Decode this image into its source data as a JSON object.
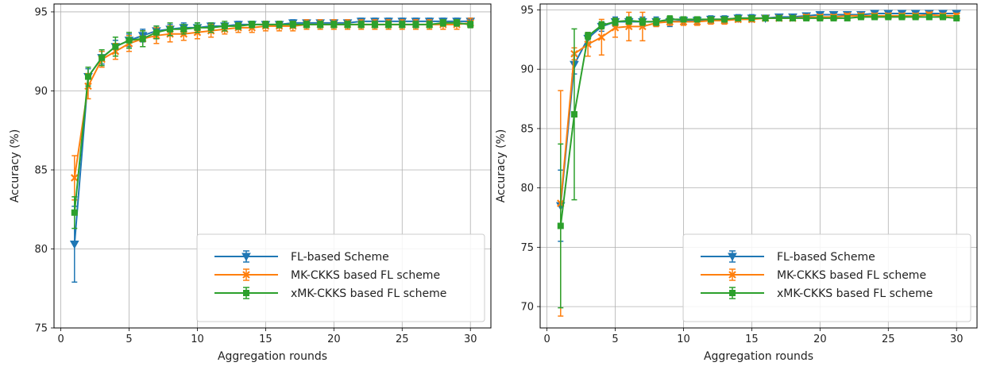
{
  "chart_data": [
    {
      "type": "line",
      "xlabel": "Aggregation rounds",
      "ylabel": "Accuracy (%)",
      "xlim": [
        -0.5,
        31.5
      ],
      "ylim": [
        75,
        95.5
      ],
      "xticks": [
        0,
        5,
        10,
        15,
        20,
        25,
        30
      ],
      "yticks": [
        75,
        80,
        85,
        90,
        95
      ],
      "grid": true,
      "legend_position": "lower-right",
      "x": [
        1,
        2,
        3,
        4,
        5,
        6,
        7,
        8,
        9,
        10,
        11,
        12,
        13,
        14,
        15,
        16,
        17,
        18,
        19,
        20,
        21,
        22,
        23,
        24,
        25,
        26,
        27,
        28,
        29,
        30
      ],
      "series": [
        {
          "name": "FL-based Scheme",
          "color": "#1f77b4",
          "marker": "triangle-down",
          "values": [
            80.3,
            90.9,
            92.1,
            92.8,
            93.2,
            93.5,
            93.8,
            93.9,
            94.0,
            94.0,
            94.1,
            94.1,
            94.2,
            94.2,
            94.2,
            94.2,
            94.3,
            94.3,
            94.3,
            94.3,
            94.3,
            94.4,
            94.4,
            94.4,
            94.4,
            94.4,
            94.4,
            94.4,
            94.4,
            94.4
          ],
          "errors": [
            2.4,
            0.5,
            0.4,
            0.4,
            0.4,
            0.4,
            0.3,
            0.3,
            0.3,
            0.3,
            0.2,
            0.2,
            0.2,
            0.2,
            0.2,
            0.2,
            0.2,
            0.2,
            0.2,
            0.2,
            0.2,
            0.2,
            0.2,
            0.2,
            0.2,
            0.2,
            0.2,
            0.2,
            0.2,
            0.2
          ]
        },
        {
          "name": "MK-CKKS based FL scheme",
          "color": "#ff7f0e",
          "marker": "x",
          "values": [
            84.5,
            90.3,
            92.0,
            92.5,
            93.0,
            93.3,
            93.5,
            93.6,
            93.6,
            93.7,
            93.8,
            93.9,
            94.0,
            94.0,
            94.1,
            94.1,
            94.1,
            94.2,
            94.2,
            94.2,
            94.2,
            94.2,
            94.2,
            94.2,
            94.2,
            94.2,
            94.2,
            94.2,
            94.2,
            94.3
          ],
          "errors": [
            1.4,
            0.8,
            0.5,
            0.5,
            0.5,
            0.5,
            0.5,
            0.5,
            0.4,
            0.4,
            0.4,
            0.3,
            0.3,
            0.3,
            0.3,
            0.3,
            0.3,
            0.3,
            0.3,
            0.3,
            0.3,
            0.3,
            0.3,
            0.3,
            0.3,
            0.3,
            0.3,
            0.3,
            0.3,
            0.3
          ]
        },
        {
          "name": "xMK-CKKS based FL scheme",
          "color": "#2ca02c",
          "marker": "square",
          "values": [
            82.3,
            90.9,
            92.1,
            92.8,
            93.2,
            93.3,
            93.7,
            93.9,
            93.9,
            94.0,
            94.0,
            94.1,
            94.1,
            94.2,
            94.2,
            94.2,
            94.2,
            94.2,
            94.2,
            94.2,
            94.2,
            94.2,
            94.2,
            94.2,
            94.2,
            94.2,
            94.2,
            94.3,
            94.3,
            94.2
          ],
          "errors": [
            1.0,
            0.6,
            0.5,
            0.6,
            0.5,
            0.5,
            0.4,
            0.4,
            0.3,
            0.3,
            0.3,
            0.3,
            0.2,
            0.2,
            0.2,
            0.2,
            0.2,
            0.2,
            0.2,
            0.2,
            0.2,
            0.2,
            0.2,
            0.2,
            0.2,
            0.2,
            0.2,
            0.2,
            0.2,
            0.2
          ]
        }
      ]
    },
    {
      "type": "line",
      "xlabel": "Aggregation rounds",
      "ylabel": "Accuracy (%)",
      "xlim": [
        -0.5,
        31.5
      ],
      "ylim": [
        68.2,
        95.5
      ],
      "xticks": [
        0,
        5,
        10,
        15,
        20,
        25,
        30
      ],
      "yticks": [
        70,
        75,
        80,
        85,
        90,
        95
      ],
      "grid": true,
      "legend_position": "lower-right",
      "x": [
        1,
        2,
        3,
        4,
        5,
        6,
        7,
        8,
        9,
        10,
        11,
        12,
        13,
        14,
        15,
        16,
        17,
        18,
        19,
        20,
        21,
        22,
        23,
        24,
        25,
        26,
        27,
        28,
        29,
        30
      ],
      "series": [
        {
          "name": "FL-based Scheme",
          "color": "#1f77b4",
          "marker": "triangle-down",
          "values": [
            78.5,
            90.4,
            92.6,
            93.6,
            94.0,
            94.0,
            94.0,
            94.0,
            94.0,
            94.1,
            94.1,
            94.2,
            94.2,
            94.3,
            94.3,
            94.3,
            94.4,
            94.4,
            94.5,
            94.6,
            94.6,
            94.6,
            94.6,
            94.7,
            94.7,
            94.7,
            94.7,
            94.7,
            94.7,
            94.7
          ],
          "errors": [
            3.0,
            0.8,
            0.5,
            0.4,
            0.4,
            0.4,
            0.4,
            0.4,
            0.4,
            0.3,
            0.3,
            0.3,
            0.3,
            0.3,
            0.3,
            0.2,
            0.2,
            0.2,
            0.2,
            0.2,
            0.2,
            0.2,
            0.2,
            0.2,
            0.2,
            0.2,
            0.2,
            0.2,
            0.2,
            0.2
          ]
        },
        {
          "name": "MK-CKKS based FL scheme",
          "color": "#ff7f0e",
          "marker": "x",
          "values": [
            78.7,
            91.3,
            92.1,
            92.7,
            93.5,
            93.6,
            93.6,
            93.9,
            94.0,
            94.0,
            94.0,
            94.1,
            94.1,
            94.2,
            94.2,
            94.3,
            94.3,
            94.3,
            94.4,
            94.4,
            94.4,
            94.5,
            94.5,
            94.5,
            94.5,
            94.5,
            94.5,
            94.6,
            94.5,
            94.5
          ],
          "errors": [
            9.5,
            0.5,
            1.0,
            1.5,
            0.8,
            1.2,
            1.2,
            0.3,
            0.3,
            0.3,
            0.3,
            0.3,
            0.3,
            0.2,
            0.2,
            0.2,
            0.2,
            0.2,
            0.2,
            0.2,
            0.2,
            0.2,
            0.2,
            0.2,
            0.2,
            0.2,
            0.2,
            0.2,
            0.2,
            0.2
          ]
        },
        {
          "name": "xMK-CKKS based FL scheme",
          "color": "#2ca02c",
          "marker": "square",
          "values": [
            76.8,
            86.2,
            92.8,
            93.7,
            94.0,
            94.1,
            94.0,
            94.0,
            94.2,
            94.2,
            94.2,
            94.2,
            94.2,
            94.3,
            94.3,
            94.3,
            94.3,
            94.3,
            94.3,
            94.3,
            94.3,
            94.3,
            94.4,
            94.4,
            94.4,
            94.4,
            94.4,
            94.4,
            94.4,
            94.3
          ],
          "errors": [
            6.9,
            7.2,
            0.3,
            0.3,
            0.3,
            0.3,
            0.3,
            0.3,
            0.3,
            0.2,
            0.2,
            0.2,
            0.2,
            0.2,
            0.2,
            0.2,
            0.2,
            0.2,
            0.2,
            0.2,
            0.2,
            0.2,
            0.2,
            0.2,
            0.2,
            0.2,
            0.2,
            0.2,
            0.2,
            0.2
          ]
        }
      ]
    }
  ]
}
